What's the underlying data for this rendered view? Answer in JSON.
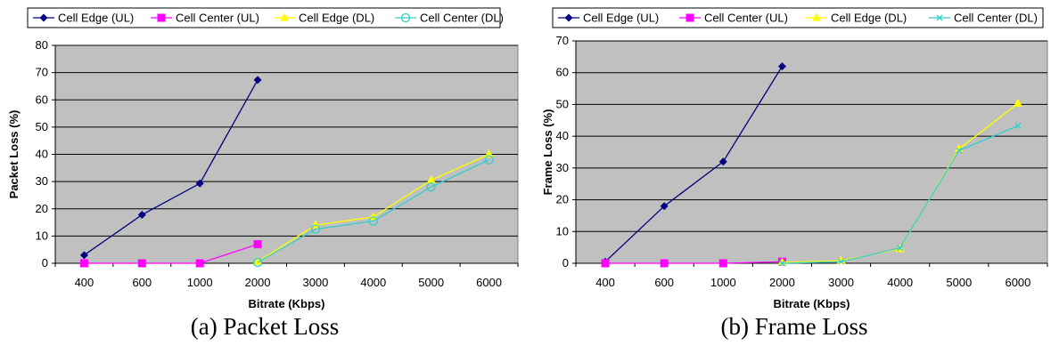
{
  "figure": {
    "captions": [
      "(a) Packet Loss",
      "(b) Frame Loss"
    ]
  },
  "chart_data": [
    {
      "type": "line",
      "categories": [
        "400",
        "600",
        "1000",
        "2000",
        "3000",
        "4000",
        "5000",
        "6000"
      ],
      "xlabel": "Bitrate (Kbps)",
      "ylabel": "Packet Loss (%)",
      "ylim": [
        0,
        80
      ],
      "yticks": [
        0,
        10,
        20,
        30,
        40,
        50,
        60,
        70,
        80
      ],
      "grid": true,
      "plot_background": "#c0c0c0",
      "legend_position": "top",
      "series": [
        {
          "name": "Cell Edge (UL)",
          "color": "#000080",
          "marker": "diamond",
          "values": [
            3,
            17.8,
            29.3,
            67.3,
            null,
            null,
            null,
            null
          ]
        },
        {
          "name": "Cell Center (UL)",
          "color": "#ff00ff",
          "marker": "square",
          "values": [
            0,
            0,
            0,
            7,
            null,
            null,
            null,
            null
          ]
        },
        {
          "name": "Cell Edge (DL)",
          "color": "#ffff00",
          "marker": "triangle",
          "values": [
            null,
            null,
            null,
            0.5,
            14,
            17,
            30.5,
            40
          ]
        },
        {
          "name": "Cell Center (DL)",
          "color": "#33cccc",
          "marker": "circle",
          "values": [
            null,
            null,
            null,
            0.3,
            12.5,
            15.5,
            28,
            38
          ]
        }
      ]
    },
    {
      "type": "line",
      "categories": [
        "400",
        "600",
        "1000",
        "2000",
        "3000",
        "4000",
        "5000",
        "6000"
      ],
      "xlabel": "Bitrate (Kbps)",
      "ylabel": "Frame Loss (%)",
      "ylim": [
        0,
        70
      ],
      "yticks": [
        0,
        10,
        20,
        30,
        40,
        50,
        60,
        70
      ],
      "grid": true,
      "plot_background": "#c0c0c0",
      "legend_position": "top",
      "series": [
        {
          "name": "Cell Edge (UL)",
          "color": "#000080",
          "marker": "diamond",
          "values": [
            0.5,
            18,
            32,
            62,
            null,
            null,
            null,
            null
          ]
        },
        {
          "name": "Cell Center (UL)",
          "color": "#ff00ff",
          "marker": "square",
          "values": [
            0,
            0,
            0,
            0.5,
            null,
            null,
            null,
            null
          ]
        },
        {
          "name": "Cell Edge (DL)",
          "color": "#ffff00",
          "marker": "triangle",
          "values": [
            null,
            null,
            null,
            0.3,
            0.8,
            4.5,
            36,
            50.3
          ]
        },
        {
          "name": "Cell Center (DL)",
          "color": "#33cccc",
          "marker": "x",
          "values": [
            null,
            null,
            null,
            0,
            0.5,
            4.8,
            35.5,
            43.3
          ]
        }
      ]
    }
  ]
}
